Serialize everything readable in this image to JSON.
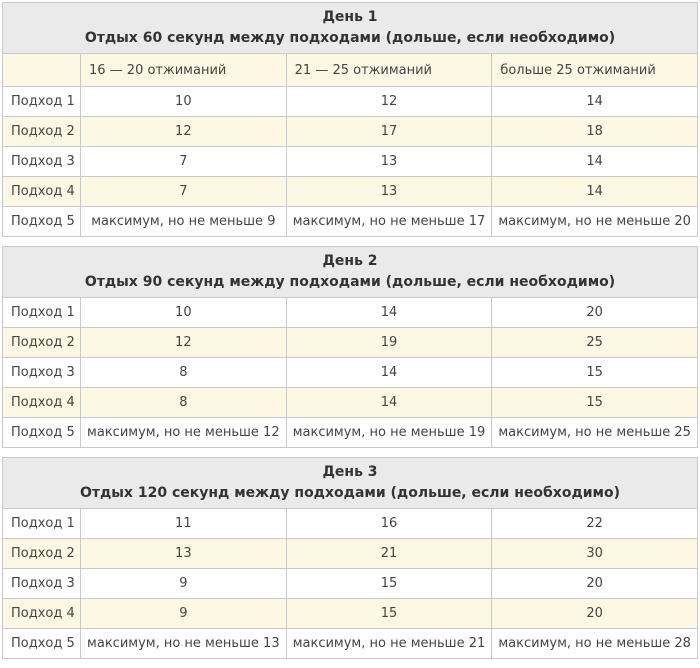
{
  "colors": {
    "title_bg": "#eaeaea",
    "stripe_bg": "#fdf8e3",
    "border": "#c9c9c9",
    "cell_text": "#444444",
    "title_text": "#333333"
  },
  "tables": [
    {
      "title": "День 1",
      "subtitle": "Отдых 60 секунд между подходами (дольше, если необходимо)",
      "column_headers": [
        "",
        "16 — 20 отжиманий",
        "21 — 25 отжиманий",
        "больше 25 отжиманий"
      ],
      "rows": [
        {
          "label": "Подход 1",
          "values": [
            "10",
            "12",
            "14"
          ]
        },
        {
          "label": "Подход 2",
          "values": [
            "12",
            "17",
            "18"
          ]
        },
        {
          "label": "Подход 3",
          "values": [
            "7",
            "13",
            "14"
          ]
        },
        {
          "label": "Подход 4",
          "values": [
            "7",
            "13",
            "14"
          ]
        },
        {
          "label": "Подход 5",
          "values": [
            "максимум, но не меньше 9",
            "максимум, но не меньше 17",
            "максимум, но не меньше 20"
          ]
        }
      ]
    },
    {
      "title": "День 2",
      "subtitle": "Отдых 90 секунд между подходами (дольше, если необходимо)",
      "column_headers": null,
      "rows": [
        {
          "label": "Подход 1",
          "values": [
            "10",
            "14",
            "20"
          ]
        },
        {
          "label": "Подход 2",
          "values": [
            "12",
            "19",
            "25"
          ]
        },
        {
          "label": "Подход 3",
          "values": [
            "8",
            "14",
            "15"
          ]
        },
        {
          "label": "Подход 4",
          "values": [
            "8",
            "14",
            "15"
          ]
        },
        {
          "label": "Подход 5",
          "values": [
            "максимум, но не меньше 12",
            "максимум, но не меньше 19",
            "максимум, но не меньше 25"
          ]
        }
      ]
    },
    {
      "title": "День 3",
      "subtitle": "Отдых 120 секунд между подходами (дольше, если необходимо)",
      "column_headers": null,
      "rows": [
        {
          "label": "Подход 1",
          "values": [
            "11",
            "16",
            "22"
          ]
        },
        {
          "label": "Подход 2",
          "values": [
            "13",
            "21",
            "30"
          ]
        },
        {
          "label": "Подход 3",
          "values": [
            "9",
            "15",
            "20"
          ]
        },
        {
          "label": "Подход 4",
          "values": [
            "9",
            "15",
            "20"
          ]
        },
        {
          "label": "Подход 5",
          "values": [
            "максимум, но не меньше 13",
            "максимум, но не меньше 21",
            "максимум, но не меньше 28"
          ]
        }
      ]
    }
  ]
}
